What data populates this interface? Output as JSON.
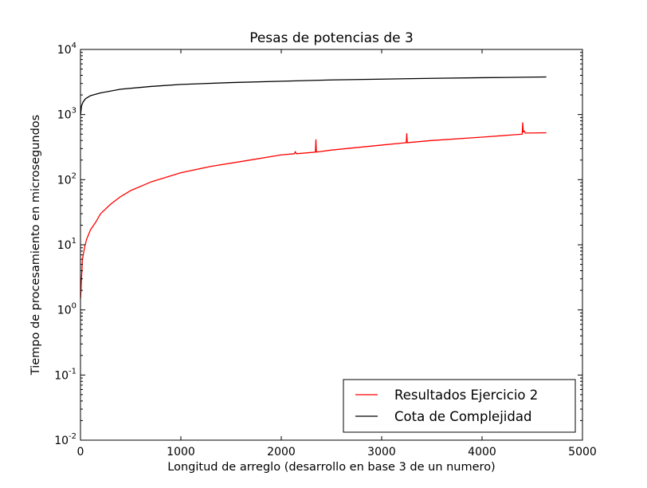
{
  "chart_data": {
    "type": "line",
    "title": "Pesas de potencias de 3",
    "xlabel": "Longitud de arreglo (desarrollo en base 3 de un numero)",
    "ylabel": "Tiempo de procesamiento en microsegundos",
    "xlim": [
      0,
      5000
    ],
    "ylim": [
      0.01,
      10000
    ],
    "yscale": "log",
    "grid": false,
    "legend_position": "lower-right",
    "x_ticks": [
      {
        "value": 0,
        "label": "0"
      },
      {
        "value": 1000,
        "label": "1000"
      },
      {
        "value": 2000,
        "label": "2000"
      },
      {
        "value": 3000,
        "label": "3000"
      },
      {
        "value": 4000,
        "label": "4000"
      },
      {
        "value": 5000,
        "label": "5000"
      }
    ],
    "y_ticks": [
      {
        "value": 0.01,
        "base": "10",
        "exp": "-2"
      },
      {
        "value": 0.1,
        "base": "10",
        "exp": "-1"
      },
      {
        "value": 1,
        "base": "10",
        "exp": "0"
      },
      {
        "value": 10,
        "base": "10",
        "exp": "1"
      },
      {
        "value": 100,
        "base": "10",
        "exp": "2"
      },
      {
        "value": 1000,
        "base": "10",
        "exp": "3"
      },
      {
        "value": 10000,
        "base": "10",
        "exp": "4"
      }
    ],
    "series": [
      {
        "name": "Resultados Ejercicio 2",
        "color": "#ff0000",
        "x": [
          1,
          10,
          20,
          40,
          60,
          100,
          150,
          200,
          300,
          400,
          500,
          700,
          1000,
          1300,
          1600,
          2000,
          2130,
          2140,
          2150,
          2340,
          2345,
          2350,
          2500,
          3000,
          3245,
          3250,
          3255,
          3500,
          4000,
          4400,
          4405,
          4410,
          4420,
          4430,
          4640
        ],
        "y": [
          1.5,
          3,
          6,
          9,
          12,
          17,
          22,
          30,
          42,
          55,
          68,
          92,
          128,
          160,
          190,
          240,
          250,
          270,
          250,
          265,
          410,
          265,
          285,
          340,
          370,
          510,
          370,
          400,
          450,
          500,
          750,
          540,
          560,
          520,
          525
        ]
      },
      {
        "name": "Cota de Complejidad",
        "color": "#000000",
        "x": [
          1,
          10,
          25,
          50,
          100,
          200,
          400,
          700,
          1000,
          1500,
          2000,
          2500,
          3000,
          3500,
          4000,
          4640
        ],
        "y": [
          1000,
          1350,
          1550,
          1750,
          1950,
          2150,
          2450,
          2700,
          2900,
          3100,
          3250,
          3400,
          3500,
          3600,
          3680,
          3780
        ]
      }
    ]
  }
}
